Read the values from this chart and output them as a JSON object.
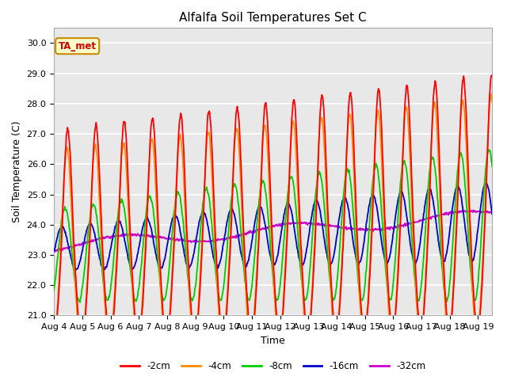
{
  "title": "Alfalfa Soil Temperatures Set C",
  "xlabel": "Time",
  "ylabel": "Soil Temperature (C)",
  "xlim": [
    0,
    15.5
  ],
  "ylim": [
    21.0,
    30.5
  ],
  "yticks": [
    21.0,
    22.0,
    23.0,
    24.0,
    25.0,
    26.0,
    27.0,
    28.0,
    29.0,
    30.0
  ],
  "xtick_labels": [
    "Aug 4",
    "Aug 5",
    "Aug 6",
    "Aug 7",
    "Aug 8",
    "Aug 9",
    "Aug 10",
    "Aug 11",
    "Aug 12",
    "Aug 13",
    "Aug 14",
    "Aug 15",
    "Aug 16",
    "Aug 17",
    "Aug 18",
    "Aug 19"
  ],
  "colors": {
    "-2cm": "#ff0000",
    "-4cm": "#ff8c00",
    "-8cm": "#00cc00",
    "-16cm": "#0000cc",
    "-32cm": "#cc00cc"
  },
  "ta_met_label": "TA_met",
  "plot_bg_color": "#e8e8e8",
  "fig_bg_color": "#ffffff",
  "grid_color": "#ffffff",
  "title_fontsize": 11,
  "axis_label_fontsize": 9,
  "tick_fontsize": 8,
  "legend_fontsize": 8.5
}
